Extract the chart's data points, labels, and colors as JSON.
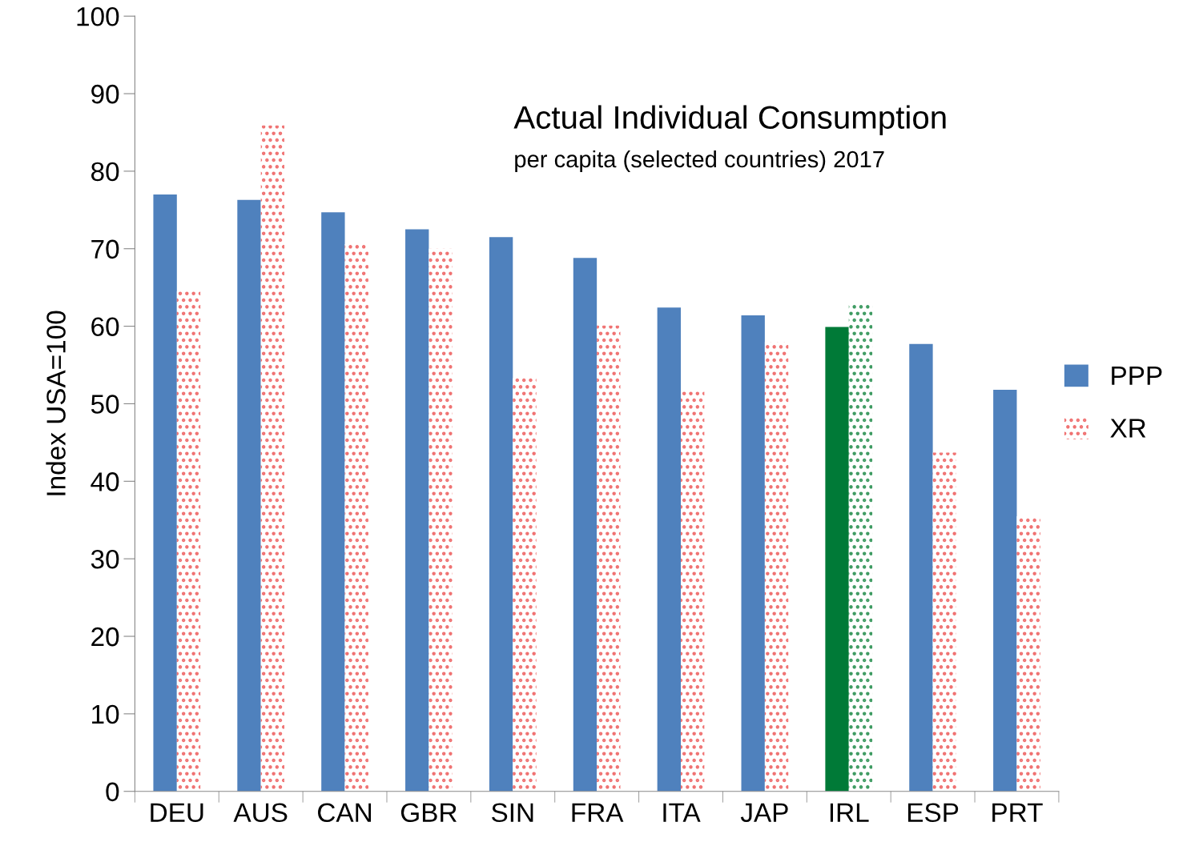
{
  "chart_data": {
    "type": "bar",
    "title": "Actual Individual Consumption",
    "subtitle": "per capita (selected countries) 2017",
    "ylabel": "Index USA=100",
    "categories": [
      "DEU",
      "AUS",
      "CAN",
      "GBR",
      "SIN",
      "FRA",
      "ITA",
      "JAP",
      "IRL",
      "ESP",
      "PRT"
    ],
    "series": [
      {
        "name": "PPP",
        "color": "#4f81bd",
        "colors": [
          "#4f81bd",
          "#4f81bd",
          "#4f81bd",
          "#4f81bd",
          "#4f81bd",
          "#4f81bd",
          "#4f81bd",
          "#4f81bd",
          "#007a37",
          "#4f81bd",
          "#4f81bd"
        ],
        "values": [
          77.0,
          76.3,
          74.7,
          72.5,
          71.5,
          68.8,
          62.4,
          61.4,
          59.9,
          57.7,
          51.8
        ]
      },
      {
        "name": "XR",
        "color": "#f07070",
        "colors": [
          "#f07070",
          "#f07070",
          "#f07070",
          "#f07070",
          "#f07070",
          "#f07070",
          "#f07070",
          "#f07070",
          "#3c9a60",
          "#f07070",
          "#f07070"
        ],
        "values": [
          64.5,
          85.9,
          70.6,
          70.0,
          53.3,
          60.1,
          51.6,
          58.0,
          63.0,
          43.7,
          35.5
        ]
      }
    ],
    "ylim": [
      0,
      100
    ],
    "yticks": [
      0,
      10,
      20,
      30,
      40,
      50,
      60,
      70,
      80,
      90,
      100
    ],
    "grid": false,
    "legend": "right"
  }
}
